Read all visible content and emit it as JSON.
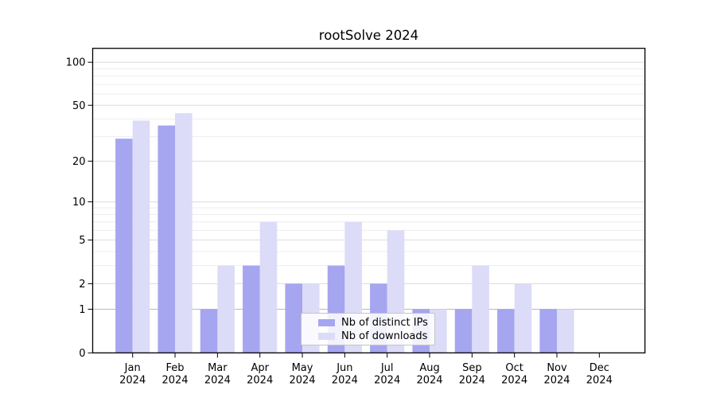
{
  "chart_data": {
    "type": "bar",
    "title": "rootSolve 2024",
    "categories": [
      "Jan",
      "Feb",
      "Mar",
      "Apr",
      "May",
      "Jun",
      "Jul",
      "Aug",
      "Sep",
      "Oct",
      "Nov",
      "Dec"
    ],
    "category_sublabel": "2024",
    "series": [
      {
        "name": "Nb of distinct IPs",
        "color": "#a5a5f0",
        "values": [
          29,
          36,
          1,
          3,
          2,
          3,
          2,
          1,
          1,
          1,
          1,
          0
        ]
      },
      {
        "name": "Nb of downloads",
        "color": "#dcdcf8",
        "values": [
          39,
          44,
          3,
          7,
          2,
          7,
          6,
          1,
          3,
          2,
          1,
          0
        ]
      }
    ],
    "y_axis": {
      "scale": "log1p",
      "tick_values": [
        0,
        1,
        2,
        5,
        10,
        20,
        50,
        100
      ],
      "minor_grid_values": [
        3,
        4,
        6,
        7,
        8,
        9,
        30,
        40,
        60,
        70,
        80,
        90
      ],
      "max": 125
    },
    "x_axis": {
      "tick_per_month": true
    },
    "legend": {
      "position": "lower-center"
    },
    "grid": "horizontal",
    "colors": {
      "frame": "#000000",
      "text": "#000000",
      "grid_major": "#dcdcdc",
      "grid_minor": "#ededed",
      "grid_unit_line": "#bbbbbb",
      "legend_border": "#c4c4c4",
      "legend_bg": "rgba(255,255,255,0.85)"
    }
  }
}
